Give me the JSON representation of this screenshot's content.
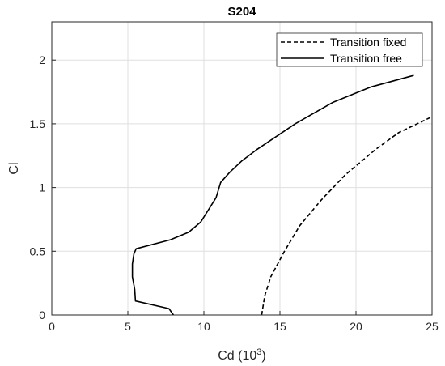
{
  "chart_data": {
    "type": "line",
    "title": "S204",
    "xlabel": "Cd (10",
    "xlabel_sup": "3",
    "xlabel_close": ")",
    "ylabel": "Cl",
    "xlim": [
      0,
      25
    ],
    "ylim": [
      0,
      2.3
    ],
    "xticks": [
      "0",
      "5",
      "10",
      "15",
      "20",
      "25"
    ],
    "xtick_values": [
      0,
      5,
      10,
      15,
      20,
      25
    ],
    "yticks": [
      "0",
      "0.5",
      "1",
      "1.5",
      "2"
    ],
    "ytick_values": [
      0,
      0.5,
      1,
      1.5,
      2
    ],
    "grid": true,
    "legend_position": "top-right",
    "series": [
      {
        "name": "Transition fixed",
        "style": "dashed",
        "color": "#000000",
        "points": [
          [
            13.8,
            0.0
          ],
          [
            14.0,
            0.15
          ],
          [
            14.4,
            0.3
          ],
          [
            15.3,
            0.5
          ],
          [
            16.3,
            0.7
          ],
          [
            17.7,
            0.9
          ],
          [
            19.3,
            1.1
          ],
          [
            21.3,
            1.3
          ],
          [
            22.8,
            1.43
          ],
          [
            24.9,
            1.55
          ]
        ]
      },
      {
        "name": "Transition free",
        "style": "solid",
        "color": "#000000",
        "points": [
          [
            8.0,
            0.0
          ],
          [
            7.7,
            0.05
          ],
          [
            5.5,
            0.11
          ],
          [
            5.45,
            0.2
          ],
          [
            5.3,
            0.3
          ],
          [
            5.3,
            0.4
          ],
          [
            5.4,
            0.48
          ],
          [
            5.55,
            0.52
          ],
          [
            7.8,
            0.59
          ],
          [
            9.0,
            0.65
          ],
          [
            9.8,
            0.73
          ],
          [
            10.8,
            0.92
          ],
          [
            11.1,
            1.04
          ],
          [
            11.7,
            1.12
          ],
          [
            12.5,
            1.21
          ],
          [
            13.5,
            1.3
          ],
          [
            16.0,
            1.5
          ],
          [
            18.5,
            1.67
          ],
          [
            21.0,
            1.79
          ],
          [
            23.8,
            1.88
          ]
        ]
      }
    ]
  }
}
